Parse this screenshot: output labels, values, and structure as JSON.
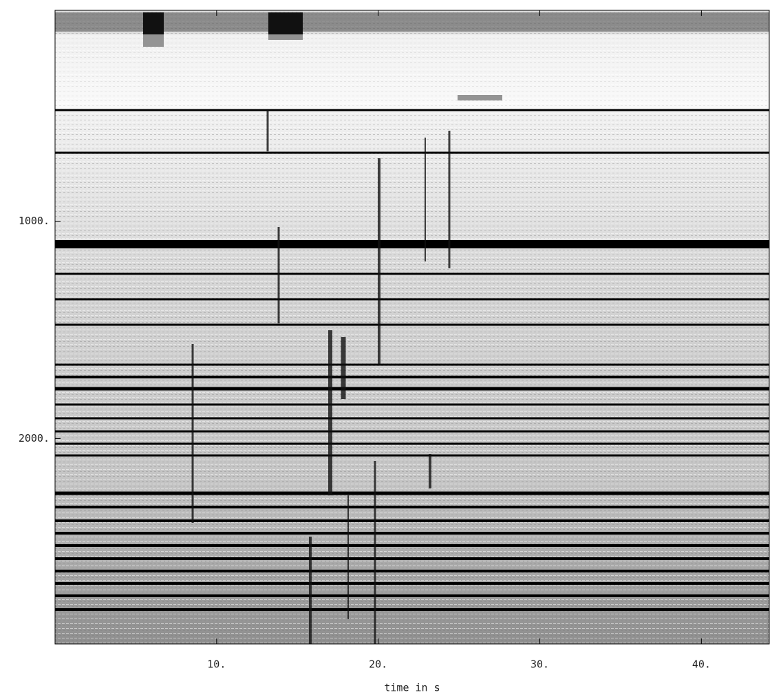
{
  "chart_data": {
    "type": "heatmap",
    "xlabel": "time in s",
    "xlim": [
      0,
      44.2
    ],
    "ylim": [
      30,
      2945
    ],
    "xticks": [
      {
        "value": 10,
        "label": "10."
      },
      {
        "value": 20,
        "label": "20."
      },
      {
        "value": 30,
        "label": "30."
      },
      {
        "value": 40,
        "label": "40."
      }
    ],
    "yticks": [
      {
        "value": 1000,
        "label": "1000."
      },
      {
        "value": 2000,
        "label": "2000."
      }
    ]
  }
}
